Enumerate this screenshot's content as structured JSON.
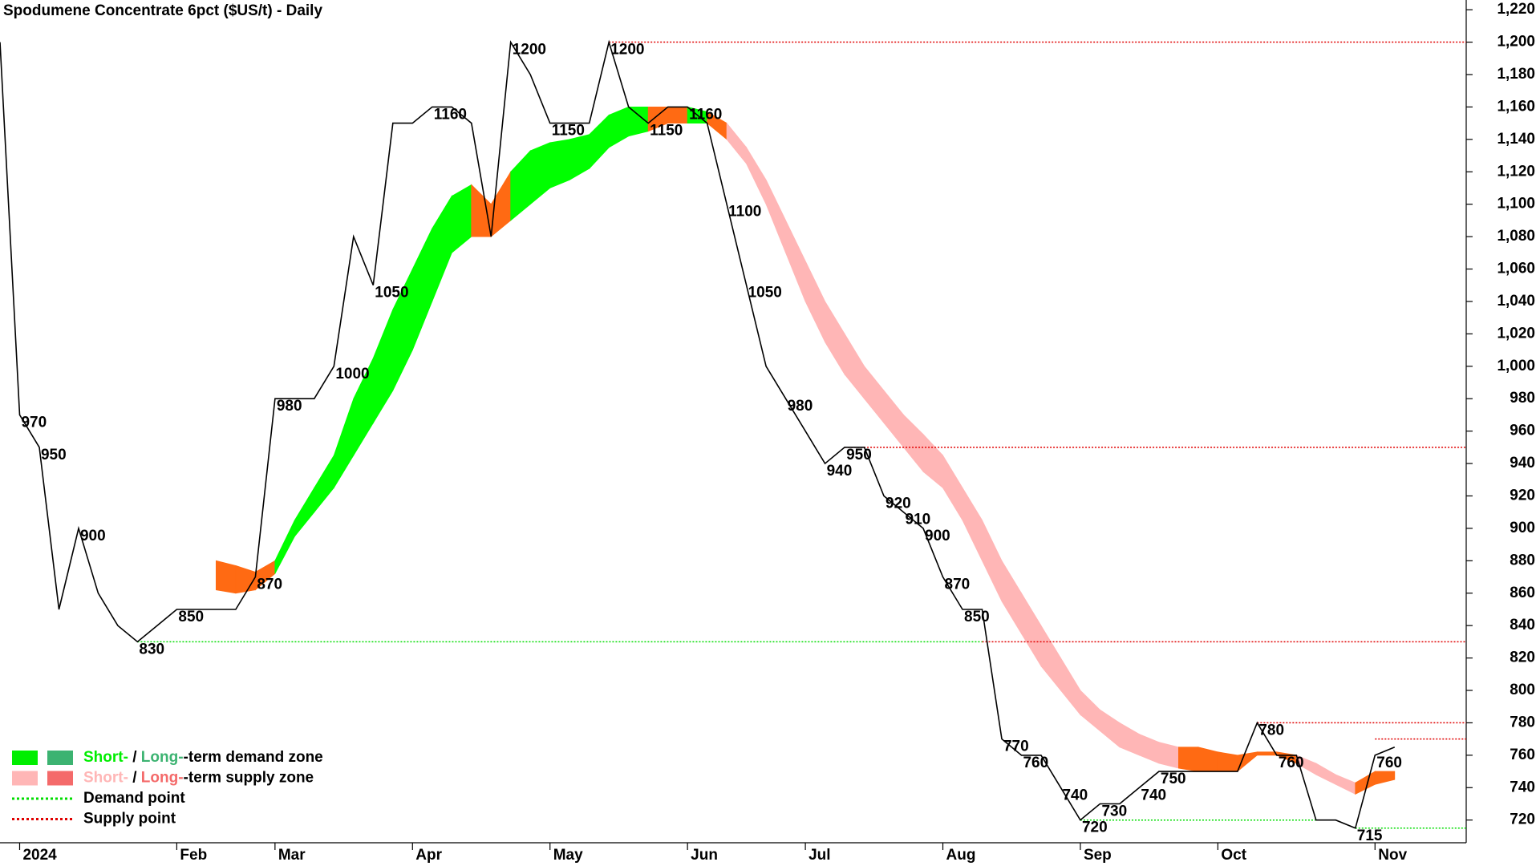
{
  "chart_data": {
    "type": "line",
    "title": "Spodumene Concentrate 6pct ($US/t) - Daily",
    "categories": [
      null,
      "2024",
      null,
      null,
      null,
      null,
      null,
      null,
      null,
      "Feb",
      null,
      null,
      null,
      null,
      "Mar",
      null,
      null,
      null,
      null,
      null,
      null,
      "Apr",
      null,
      null,
      null,
      null,
      null,
      null,
      "May",
      null,
      null,
      null,
      null,
      null,
      null,
      "Jun",
      null,
      null,
      null,
      null,
      null,
      "Jul",
      null,
      null,
      null,
      null,
      null,
      null,
      "Aug",
      null,
      null,
      null,
      null,
      null,
      null,
      "Sep",
      null,
      null,
      null,
      null,
      null,
      null,
      "Oct",
      null,
      null,
      null,
      null,
      null,
      null,
      null,
      "Nov",
      null
    ],
    "values": [
      1200,
      970,
      950,
      850,
      900,
      860,
      840,
      830,
      840,
      850,
      850,
      850,
      850,
      870,
      980,
      980,
      980,
      1000,
      1080,
      1050,
      1150,
      1150,
      1160,
      1160,
      1150,
      1080,
      1200,
      1180,
      1150,
      1150,
      1150,
      1200,
      1160,
      1150,
      1160,
      1160,
      1150,
      1100,
      1050,
      1000,
      980,
      960,
      940,
      950,
      950,
      920,
      910,
      900,
      870,
      850,
      850,
      770,
      760,
      760,
      740,
      720,
      730,
      730,
      740,
      750,
      750,
      750,
      750,
      750,
      780,
      760,
      760,
      720,
      720,
      715,
      760,
      765
    ],
    "value_labels": [
      null,
      "970",
      "950",
      null,
      "900",
      null,
      null,
      "830",
      null,
      "850",
      null,
      null,
      null,
      "870",
      "980",
      null,
      null,
      "1000",
      null,
      "1050",
      null,
      null,
      "1160",
      null,
      null,
      null,
      "1200",
      null,
      "1150",
      null,
      null,
      "1200",
      null,
      "1150",
      null,
      "1160",
      null,
      "1100",
      "1050",
      null,
      "980",
      null,
      "940",
      "950",
      null,
      "920",
      "910",
      "900",
      "870",
      "850",
      null,
      "770",
      "760",
      null,
      "740",
      "720",
      "730",
      null,
      "740",
      "750",
      null,
      null,
      null,
      null,
      "780",
      "760",
      null,
      null,
      null,
      "715",
      "760",
      null
    ],
    "color": "#000000",
    "zones": {
      "upper": [
        null,
        null,
        null,
        null,
        null,
        null,
        null,
        null,
        null,
        null,
        null,
        880,
        877,
        873,
        880,
        905,
        925,
        945,
        980,
        1005,
        1035,
        1060,
        1085,
        1105,
        1112,
        1100,
        1120,
        1133,
        1138,
        1140,
        1143,
        1155,
        1160,
        1160,
        1160,
        1160,
        1157,
        1150,
        1135,
        1115,
        1090,
        1065,
        1040,
        1020,
        1000,
        985,
        970,
        958,
        945,
        925,
        905,
        880,
        860,
        840,
        820,
        800,
        788,
        780,
        773,
        768,
        765,
        765,
        762,
        760,
        762,
        762,
        760,
        755,
        748,
        743,
        750,
        750
      ],
      "lower": [
        null,
        null,
        null,
        null,
        null,
        null,
        null,
        null,
        null,
        null,
        null,
        862,
        860,
        862,
        872,
        895,
        910,
        925,
        945,
        965,
        985,
        1010,
        1040,
        1070,
        1080,
        1080,
        1090,
        1100,
        1110,
        1115,
        1122,
        1135,
        1142,
        1145,
        1150,
        1150,
        1150,
        1140,
        1125,
        1100,
        1070,
        1040,
        1015,
        995,
        980,
        965,
        950,
        935,
        925,
        905,
        880,
        855,
        835,
        815,
        800,
        785,
        775,
        765,
        760,
        755,
        752,
        750,
        750,
        750,
        760,
        760,
        755,
        748,
        742,
        736,
        742,
        745
      ],
      "colors": [
        null,
        null,
        null,
        null,
        null,
        null,
        null,
        null,
        null,
        null,
        null,
        "#ff6a13",
        "#ff6a13",
        "#ff6a13",
        "#00ff00",
        "#00ff00",
        "#00ff00",
        "#00ff00",
        "#00ff00",
        "#00ff00",
        "#00ff00",
        "#00ff00",
        "#00ff00",
        "#00ff00",
        "#ff6a13",
        "#ff6a13",
        "#00ff00",
        "#00ff00",
        "#00ff00",
        "#00ff00",
        "#00ff00",
        "#00ff00",
        "#00ff00",
        "#ff6a13",
        "#ff6a13",
        "#00ff00",
        "#ff6a13",
        "#ffb6b6",
        "#ffb6b6",
        "#ffb6b6",
        "#ffb6b6",
        "#ffb6b6",
        "#ffb6b6",
        "#ffb6b6",
        "#ffb6b6",
        "#ffb6b6",
        "#ffb6b6",
        "#ffb6b6",
        "#ffb6b6",
        "#ffb6b6",
        "#ffb6b6",
        "#ffb6b6",
        "#ffb6b6",
        "#ffb6b6",
        "#ffb6b6",
        "#ffb6b6",
        "#ffb6b6",
        "#ffb6b6",
        "#ffb6b6",
        "#ffb6b6",
        "#ff6a13",
        "#ff6a13",
        "#ff6a13",
        "#ff6a13",
        "#ff6a13",
        "#ff6a13",
        "#ffb6b6",
        "#ffb6b6",
        "#ffb6b6",
        "#ff6a13",
        "#ff6a13",
        "#ff6a13"
      ]
    },
    "levels": [
      {
        "value": 830,
        "color": "#00dd00",
        "from": 7,
        "to": 50
      },
      {
        "value": 830,
        "color": "#e00000",
        "from": 50,
        "to": null
      },
      {
        "value": 720,
        "color": "#00dd00",
        "from": 55,
        "to": 67
      },
      {
        "value": 715,
        "color": "#00dd00",
        "from": 69,
        "to": null
      },
      {
        "value": 1200,
        "color": "#e00000",
        "from": 31,
        "to": null
      },
      {
        "value": 950,
        "color": "#e00000",
        "from": 43,
        "to": null
      },
      {
        "value": 780,
        "color": "#e00000",
        "from": 64,
        "to": null
      },
      {
        "value": 770,
        "color": "#e00000",
        "from": 70,
        "to": null
      }
    ],
    "legend": [
      {
        "parts": [
          "Short-",
          " / ",
          "Long-",
          "-term demand zone"
        ],
        "colors": [
          "#00ee00",
          "#3cb371"
        ]
      },
      {
        "parts": [
          "Short-",
          " / ",
          "Long-",
          "-term supply zone"
        ],
        "colors": [
          "#ffb6b6",
          "#f46a6a"
        ]
      },
      {
        "parts": [
          "Demand point"
        ],
        "colors": [
          "#00dd00"
        ],
        "dotted": true
      },
      {
        "parts": [
          "Supply point"
        ],
        "colors": [
          "#e00000"
        ],
        "dotted": true
      }
    ],
    "ylim": [
      706,
      1226
    ],
    "yticks": [
      720,
      740,
      760,
      780,
      800,
      820,
      840,
      860,
      880,
      900,
      920,
      940,
      960,
      980,
      {
        "value": 1000,
        "label": "1,000"
      },
      {
        "value": 1020,
        "label": "1,020"
      },
      {
        "value": 1040,
        "label": "1,040"
      },
      {
        "value": 1060,
        "label": "1,060"
      },
      {
        "value": 1080,
        "label": "1,080"
      },
      {
        "value": 1100,
        "label": "1,100"
      },
      {
        "value": 1120,
        "label": "1,120"
      },
      {
        "value": 1140,
        "label": "1,140"
      },
      {
        "value": 1160,
        "label": "1,160"
      },
      {
        "value": 1180,
        "label": "1,180"
      },
      {
        "value": 1200,
        "label": "1,200"
      },
      {
        "value": 1220,
        "label": "1,220"
      }
    ]
  }
}
